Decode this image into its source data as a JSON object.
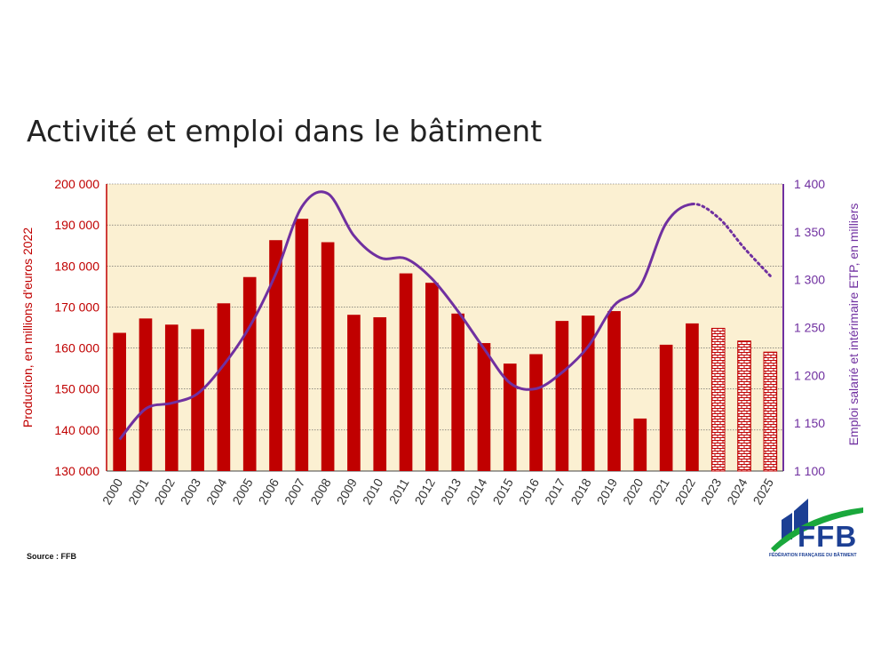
{
  "title": "Activité et emploi dans le bâtiment",
  "source": "Source : FFB",
  "logo": {
    "text": "FFB",
    "subtitle": "FÉDÉRATION FRANÇAISE DU BÂTIMENT"
  },
  "colors": {
    "bar": "#c00000",
    "line": "#7030a0",
    "plot_bg": "#fbf0d2",
    "left_axis": "#c00000",
    "right_axis": "#7030a0",
    "logo_blue": "#1c3f94",
    "logo_green": "#1aa83c"
  },
  "chart_data": {
    "type": "bar",
    "categories": [
      "2000",
      "2001",
      "2002",
      "2003",
      "2004",
      "2005",
      "2006",
      "2007",
      "2008",
      "2009",
      "2010",
      "2011",
      "2012",
      "2013",
      "2014",
      "2015",
      "2016",
      "2017",
      "2018",
      "2019",
      "2020",
      "2021",
      "2022",
      "2023",
      "2024",
      "2025"
    ],
    "ylabel": "Production, en millions d'euros 2022",
    "ylim": [
      130000,
      200000
    ],
    "yticks": [
      "130 000",
      "140 000",
      "150 000",
      "160 000",
      "170 000",
      "180 000",
      "190 000",
      "200 000"
    ],
    "y2label": "Emploi salarié et intérimaire ETP, en milliers",
    "y2lim": [
      1100,
      1400
    ],
    "y2ticks": [
      "1 100",
      "1 150",
      "1 200",
      "1 250",
      "1 300",
      "1 350",
      "1 400"
    ],
    "grid": true,
    "series": [
      {
        "type": "bar",
        "axis": "left",
        "values": [
          163700,
          167200,
          165700,
          164600,
          170900,
          177300,
          186300,
          191500,
          185800,
          168100,
          167500,
          178200,
          175900,
          168400,
          161200,
          156200,
          158500,
          166600,
          167900,
          169000,
          142800,
          160800,
          166000,
          164800,
          161700,
          159000
        ],
        "forecast_from": "2023"
      },
      {
        "type": "line",
        "axis": "right",
        "values": [
          1133,
          1165,
          1171,
          1181,
          1211,
          1251,
          1306,
          1376,
          1390,
          1346,
          1323,
          1322,
          1301,
          1267,
          1228,
          1192,
          1186,
          1203,
          1230,
          1273,
          1293,
          1359,
          1379,
          1365,
          1333,
          1304
        ],
        "forecast_from": "2022"
      }
    ]
  }
}
